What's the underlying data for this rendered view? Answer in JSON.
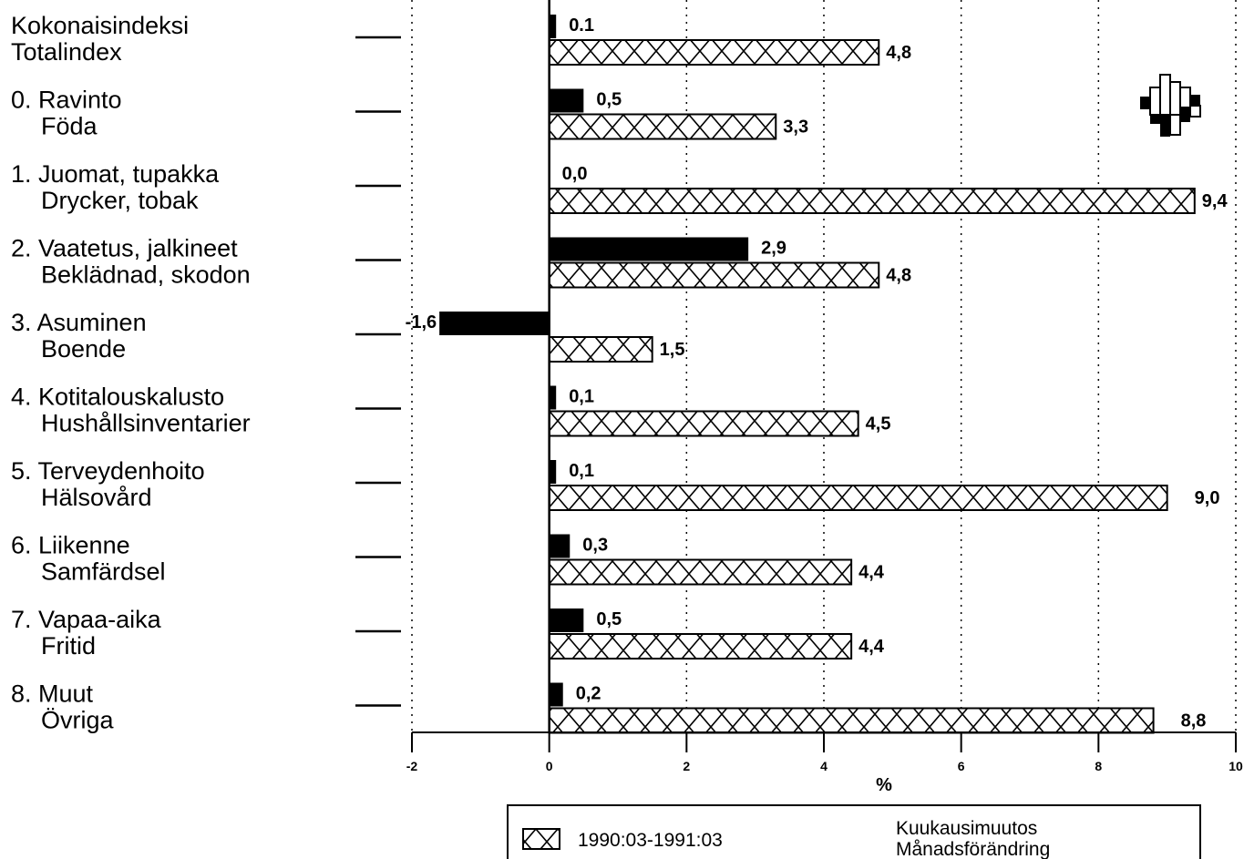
{
  "chart_data": {
    "type": "bar",
    "orientation": "horizontal",
    "categories": [
      [
        "Kokonaisindeksi",
        "Totalindex"
      ],
      [
        "0. Ravinto",
        "Föda"
      ],
      [
        "1. Juomat, tupakka",
        "Drycker, tobak"
      ],
      [
        "2. Vaatetus, jalkineet",
        "Beklädnad, skodon"
      ],
      [
        "3. Asuminen",
        "Boende"
      ],
      [
        "4. Kotitalouskalusto",
        "Hushållsinventarier"
      ],
      [
        "5. Terveydenhoito",
        "Hälsovård"
      ],
      [
        "6. Liikenne",
        "Samfärdsel"
      ],
      [
        "7. Vapaa-aika",
        "Fritid"
      ],
      [
        "8. Muut",
        "Övriga"
      ]
    ],
    "series": [
      {
        "name": [
          "Kuukausimuutos",
          "Månadsförändring"
        ],
        "fill": "solid",
        "color": "#000000",
        "values": [
          0.1,
          0.5,
          0.0,
          2.9,
          -1.6,
          0.1,
          0.1,
          0.3,
          0.5,
          0.2
        ],
        "labels": [
          "0.1",
          "0,5",
          "0,0",
          "2,9",
          "-1,6",
          "0,1",
          "0,1",
          "0,3",
          "0,5",
          "0,2"
        ]
      },
      {
        "name": "1990:03-1991:03",
        "fill": "crosshatch",
        "color": "#000000",
        "values": [
          4.8,
          3.3,
          9.4,
          4.8,
          1.5,
          4.5,
          9.0,
          4.4,
          4.4,
          8.8
        ],
        "labels": [
          "4,8",
          "3,3",
          "9,4",
          "4,8",
          "1,5",
          "4,5",
          "9,0",
          "4,4",
          "4,4",
          "8,8"
        ]
      }
    ],
    "xlim": [
      -2,
      10
    ],
    "xticks": [
      "-2",
      "0",
      "2",
      "4",
      "6",
      "8",
      "10"
    ],
    "xlabel": "%",
    "grid": "vertical-dotted",
    "legend_position": "bottom"
  }
}
